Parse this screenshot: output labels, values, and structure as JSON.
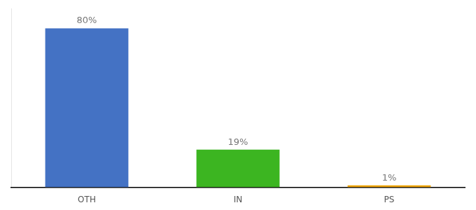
{
  "chart_data": {
    "type": "bar",
    "categories": [
      "OTH",
      "IN",
      "PS"
    ],
    "values": [
      80,
      19,
      1
    ],
    "value_labels": [
      "80%",
      "19%",
      "1%"
    ],
    "colors": [
      "#4472c4",
      "#3cb521",
      "#f0a500"
    ],
    "ylim": [
      0,
      90
    ],
    "grid": false,
    "data_labels": true,
    "tick_labels": "x"
  }
}
